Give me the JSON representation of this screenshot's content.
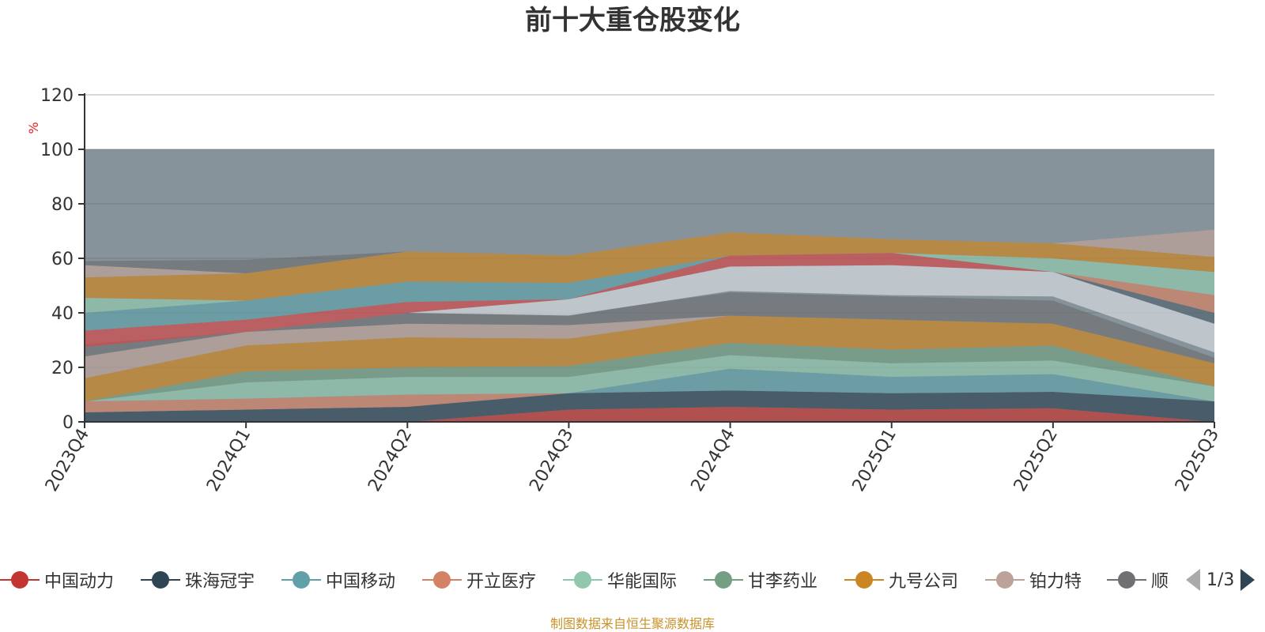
{
  "title": "前十大重仓股变化",
  "source_note": "制图数据来自恒生聚源数据库",
  "pager": {
    "text": "1/3"
  },
  "legend": [
    {
      "name": "中国动力",
      "color": "#c23531"
    },
    {
      "name": "珠海冠宇",
      "color": "#2f4554"
    },
    {
      "name": "中国移动",
      "color": "#61a0a8"
    },
    {
      "name": "开立医疗",
      "color": "#d48265"
    },
    {
      "name": "华能国际",
      "color": "#91c7ae"
    },
    {
      "name": "甘李药业",
      "color": "#749f83"
    },
    {
      "name": "九号公司",
      "color": "#ca8622"
    },
    {
      "name": "铂力特",
      "color": "#bda29a"
    },
    {
      "name": "顺",
      "color": "#6e7074"
    }
  ],
  "chart_data": {
    "type": "area",
    "stacked": true,
    "title": "前十大重仓股变化",
    "ylabel": "%",
    "ylim": [
      0,
      120
    ],
    "yticks": [
      0,
      20,
      40,
      60,
      80,
      100,
      120
    ],
    "categories": [
      "2023Q4",
      "2024Q1",
      "2024Q2",
      "2024Q3",
      "2024Q4",
      "2025Q1",
      "2025Q2",
      "2025Q3"
    ],
    "background_band": {
      "from": 0,
      "to": 100,
      "color": "#546570"
    },
    "series": [
      {
        "name": "中国动力",
        "color": "#c23531",
        "values": [
          0,
          0,
          0,
          4.5,
          5.5,
          4.5,
          5,
          0
        ]
      },
      {
        "name": "珠海冠宇",
        "color": "#2f4554",
        "values": [
          3.5,
          4.5,
          5.5,
          6,
          6,
          6,
          6,
          7.5
        ]
      },
      {
        "name": "中国移动",
        "color": "#61a0a8",
        "values": [
          0,
          0,
          0,
          0,
          8,
          6,
          6.5,
          0
        ]
      },
      {
        "name": "开立医疗",
        "color": "#d48265",
        "values": [
          4,
          4,
          4.5,
          0,
          0,
          0,
          0,
          0
        ]
      },
      {
        "name": "华能国际",
        "color": "#91c7ae",
        "values": [
          0,
          6,
          6.5,
          6,
          5,
          5,
          5,
          5.5
        ]
      },
      {
        "name": "甘李药业",
        "color": "#749f83",
        "values": [
          0,
          4,
          3.5,
          4,
          4.5,
          5,
          5.5,
          0
        ]
      },
      {
        "name": "九号公司",
        "color": "#ca8622",
        "values": [
          8.5,
          9.5,
          11,
          10,
          10,
          11,
          8,
          8.5
        ]
      },
      {
        "name": "铂力特",
        "color": "#bda29a",
        "values": [
          8,
          5,
          5,
          5,
          0,
          0,
          0,
          0
        ]
      },
      {
        "name": "顺",
        "color": "#6e7074",
        "values": [
          4.5,
          0,
          4,
          4,
          8.5,
          8.5,
          8.5,
          2
        ]
      }
    ],
    "upper_layers": [
      {
        "color": "#d7dbe0",
        "bottoms": [
          27.5,
          33,
          40,
          39,
          48,
          46.5,
          46,
          25.5
        ],
        "tops": [
          27.5,
          33,
          40,
          45,
          57,
          57.5,
          55,
          36
        ]
      },
      {
        "color": "#d14a4a",
        "bottoms": [
          27.5,
          33,
          40,
          45,
          57,
          57.5,
          55,
          36
        ],
        "tops": [
          33.5,
          37.5,
          44,
          45,
          61,
          62,
          55,
          36
        ]
      },
      {
        "color": "#546570",
        "bottoms": [
          33.5,
          37.5,
          44,
          45,
          61,
          62,
          55,
          36
        ],
        "tops": [
          33.5,
          37.5,
          44,
          45,
          61,
          62,
          55,
          40
        ]
      },
      {
        "color": "#d48265",
        "bottoms": [
          33.5,
          37.5,
          44,
          45,
          61,
          62,
          55,
          40
        ],
        "tops": [
          33.5,
          37.5,
          44,
          45,
          61,
          62,
          55,
          46.5
        ]
      },
      {
        "color": "#61a0a8",
        "bottoms": [
          33.5,
          37.5,
          44,
          45,
          61,
          62,
          55,
          46.5
        ],
        "tops": [
          40,
          44.5,
          51.5,
          51,
          61,
          62,
          55,
          46.5
        ]
      },
      {
        "color": "#91c7ae",
        "bottoms": [
          40,
          44.5,
          51.5,
          51,
          61,
          62,
          55,
          46.5
        ],
        "tops": [
          45.5,
          44.5,
          51.5,
          51,
          61,
          62,
          60,
          55
        ]
      },
      {
        "color": "#ca8622",
        "bottoms": [
          45.5,
          44.5,
          51.5,
          51,
          61,
          62,
          60,
          55
        ],
        "tops": [
          53,
          54.5,
          62.5,
          61,
          69.5,
          67,
          65.5,
          60.5
        ]
      },
      {
        "color": "#bda29a",
        "bottoms": [
          53,
          54.5,
          62.5,
          61,
          69.5,
          67,
          65.5,
          60.5
        ],
        "tops": [
          57.5,
          54.5,
          62.5,
          61,
          69.5,
          67,
          65.5,
          70.5
        ]
      },
      {
        "color": "#6e7074",
        "bottoms": [
          57.5,
          54.5,
          62.5,
          61,
          69.5,
          67,
          65.5,
          70.5
        ],
        "tops": [
          59,
          59.5,
          62.5,
          61,
          69.5,
          67,
          65.5,
          70.5
        ]
      }
    ],
    "grid": true
  }
}
